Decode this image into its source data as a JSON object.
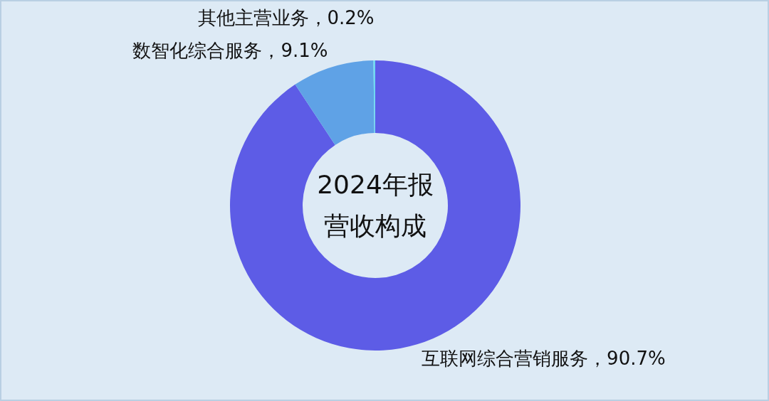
{
  "chart_data": {
    "type": "donut",
    "title": "2024年报营收构成",
    "categories": [
      "互联网综合营销服务",
      "数智化综合服务",
      "其他主营业务"
    ],
    "values": [
      90.7,
      9.1,
      0.2
    ],
    "value_labels": [
      "90.7%",
      "9.1%",
      "0.2%"
    ],
    "colors": [
      "#5d5ce6",
      "#5fa2e6",
      "#6fd8f2"
    ]
  }
}
